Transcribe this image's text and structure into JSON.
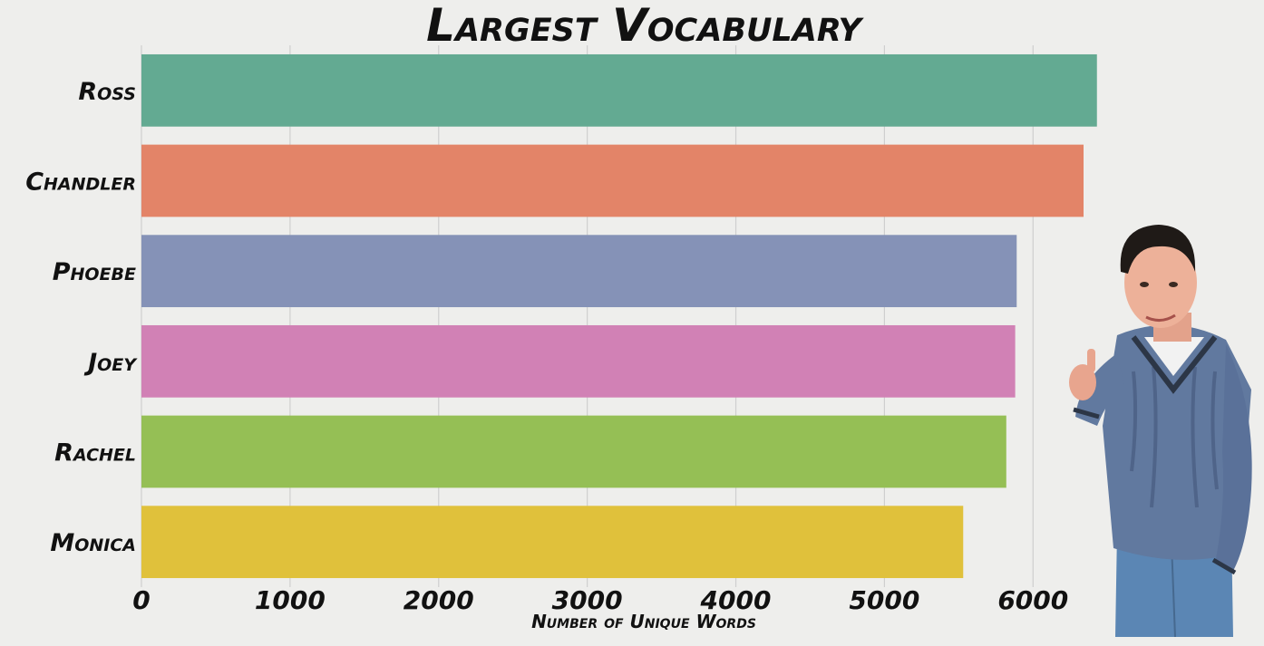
{
  "chart_data": {
    "type": "bar",
    "orientation": "horizontal",
    "title": "Largest Vocabulary",
    "xlabel": "Number of Unique Words",
    "ylabel": "",
    "categories": [
      "Ross",
      "Chandler",
      "Phoebe",
      "Joey",
      "Rachel",
      "Monica"
    ],
    "values": [
      6430,
      6340,
      5890,
      5880,
      5820,
      5530
    ],
    "colors": [
      "#63aa92",
      "#e38468",
      "#8592b7",
      "#d181b5",
      "#95bf55",
      "#e0c13b"
    ],
    "xlim": [
      0,
      6700
    ],
    "xticks": [
      0,
      1000,
      2000,
      3000,
      4000,
      5000,
      6000
    ],
    "grid": "vertical",
    "legend": "none"
  },
  "background": "#eeeeec",
  "decoration": {
    "image": "ross-thumbs-up-illustration"
  }
}
